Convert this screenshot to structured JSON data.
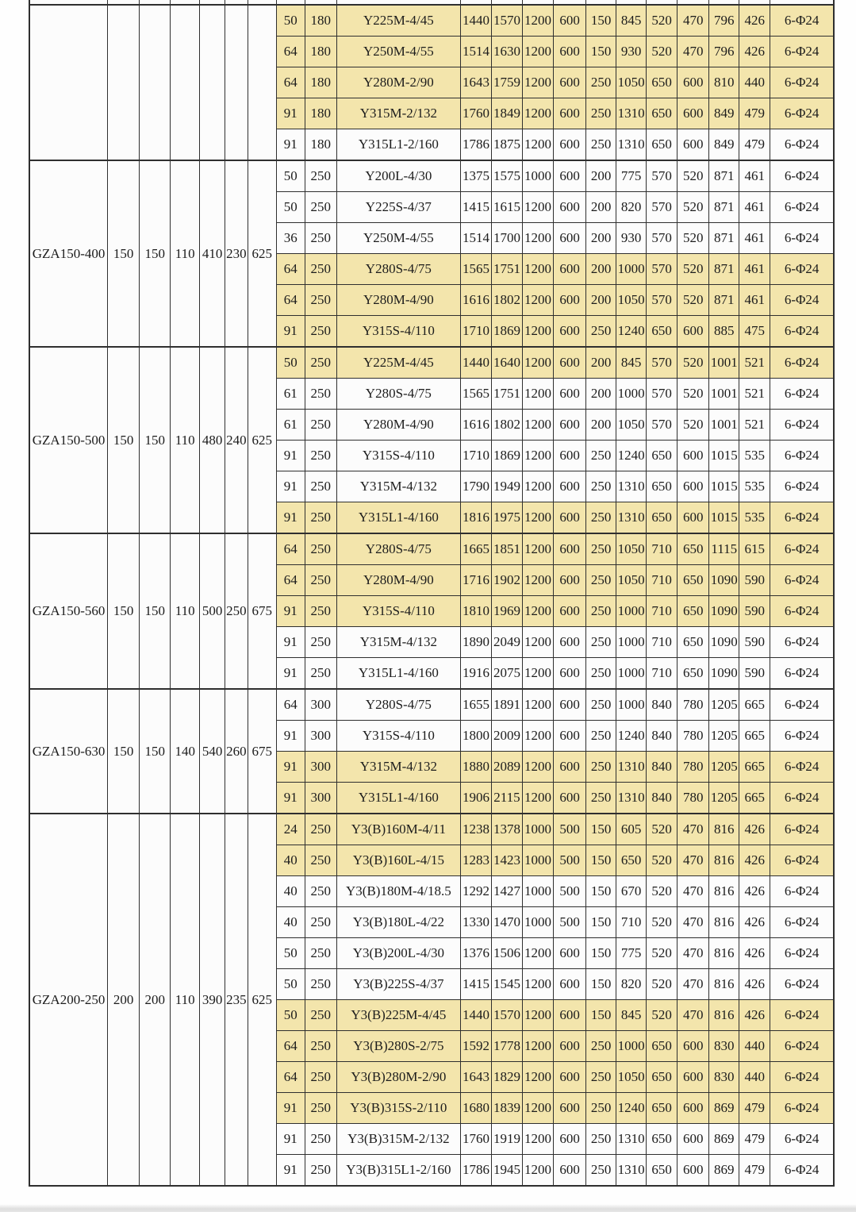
{
  "table": {
    "colors": {
      "row_yellow": "#f3e5ac",
      "row_white": "#fcfcfc",
      "border": "#2f2f2f",
      "text": "#1c1c1c"
    },
    "bolt_spec": "6-Φ24",
    "groups": [
      {
        "model": "",
        "dims": [
          "",
          "",
          "",
          "",
          "",
          ""
        ],
        "rows": [
          {
            "a": "50",
            "b": "180",
            "motor": "Y225M-4/45",
            "v": [
              "1440",
              "1570",
              "1200",
              "600",
              "150",
              "845",
              "520",
              "470",
              "796",
              "426"
            ],
            "bolt": "6-Φ24",
            "shade": "y"
          },
          {
            "a": "64",
            "b": "180",
            "motor": "Y250M-4/55",
            "v": [
              "1514",
              "1630",
              "1200",
              "600",
              "150",
              "930",
              "520",
              "470",
              "796",
              "426"
            ],
            "bolt": "6-Φ24",
            "shade": "y"
          },
          {
            "a": "64",
            "b": "180",
            "motor": "Y280M-2/90",
            "v": [
              "1643",
              "1759",
              "1200",
              "600",
              "250",
              "1050",
              "650",
              "600",
              "810",
              "440"
            ],
            "bolt": "6-Φ24",
            "shade": "y"
          },
          {
            "a": "91",
            "b": "180",
            "motor": "Y315M-2/132",
            "v": [
              "1760",
              "1849",
              "1200",
              "600",
              "250",
              "1310",
              "650",
              "600",
              "849",
              "479"
            ],
            "bolt": "6-Φ24",
            "shade": "y"
          },
          {
            "a": "91",
            "b": "180",
            "motor": "Y315L1-2/160",
            "v": [
              "1786",
              "1875",
              "1200",
              "600",
              "250",
              "1310",
              "650",
              "600",
              "849",
              "479"
            ],
            "bolt": "6-Φ24",
            "shade": "w"
          }
        ]
      },
      {
        "model": "GZA150-400",
        "dims": [
          "150",
          "150",
          "110",
          "410",
          "230",
          "625"
        ],
        "rows": [
          {
            "a": "50",
            "b": "250",
            "motor": "Y200L-4/30",
            "v": [
              "1375",
              "1575",
              "1000",
              "600",
              "200",
              "775",
              "570",
              "520",
              "871",
              "461"
            ],
            "bolt": "6-Φ24",
            "shade": "w"
          },
          {
            "a": "50",
            "b": "250",
            "motor": "Y225S-4/37",
            "v": [
              "1415",
              "1615",
              "1200",
              "600",
              "200",
              "820",
              "570",
              "520",
              "871",
              "461"
            ],
            "bolt": "6-Φ24",
            "shade": "w"
          },
          {
            "a": "36",
            "b": "250",
            "motor": "Y250M-4/55",
            "v": [
              "1514",
              "1700",
              "1200",
              "600",
              "200",
              "930",
              "570",
              "520",
              "871",
              "461"
            ],
            "bolt": "6-Φ24",
            "shade": "w"
          },
          {
            "a": "64",
            "b": "250",
            "motor": "Y280S-4/75",
            "v": [
              "1565",
              "1751",
              "1200",
              "600",
              "200",
              "1000",
              "570",
              "520",
              "871",
              "461"
            ],
            "bolt": "6-Φ24",
            "shade": "y"
          },
          {
            "a": "64",
            "b": "250",
            "motor": "Y280M-4/90",
            "v": [
              "1616",
              "1802",
              "1200",
              "600",
              "200",
              "1050",
              "570",
              "520",
              "871",
              "461"
            ],
            "bolt": "6-Φ24",
            "shade": "y"
          },
          {
            "a": "91",
            "b": "250",
            "motor": "Y315S-4/110",
            "v": [
              "1710",
              "1869",
              "1200",
              "600",
              "250",
              "1240",
              "650",
              "600",
              "885",
              "475"
            ],
            "bolt": "6-Φ24",
            "shade": "y"
          }
        ]
      },
      {
        "model": "GZA150-500",
        "dims": [
          "150",
          "150",
          "110",
          "480",
          "240",
          "625"
        ],
        "rows": [
          {
            "a": "50",
            "b": "250",
            "motor": "Y225M-4/45",
            "v": [
              "1440",
              "1640",
              "1200",
              "600",
              "200",
              "845",
              "570",
              "520",
              "1001",
              "521"
            ],
            "bolt": "6-Φ24",
            "shade": "y"
          },
          {
            "a": "61",
            "b": "250",
            "motor": "Y280S-4/75",
            "v": [
              "1565",
              "1751",
              "1200",
              "600",
              "200",
              "1000",
              "570",
              "520",
              "1001",
              "521"
            ],
            "bolt": "6-Φ24",
            "shade": "w"
          },
          {
            "a": "61",
            "b": "250",
            "motor": "Y280M-4/90",
            "v": [
              "1616",
              "1802",
              "1200",
              "600",
              "200",
              "1050",
              "570",
              "520",
              "1001",
              "521"
            ],
            "bolt": "6-Φ24",
            "shade": "w"
          },
          {
            "a": "91",
            "b": "250",
            "motor": "Y315S-4/110",
            "v": [
              "1710",
              "1869",
              "1200",
              "600",
              "250",
              "1240",
              "650",
              "600",
              "1015",
              "535"
            ],
            "bolt": "6-Φ24",
            "shade": "w"
          },
          {
            "a": "91",
            "b": "250",
            "motor": "Y315M-4/132",
            "v": [
              "1790",
              "1949",
              "1200",
              "600",
              "250",
              "1310",
              "650",
              "600",
              "1015",
              "535"
            ],
            "bolt": "6-Φ24",
            "shade": "w"
          },
          {
            "a": "91",
            "b": "250",
            "motor": "Y315L1-4/160",
            "v": [
              "1816",
              "1975",
              "1200",
              "600",
              "250",
              "1310",
              "650",
              "600",
              "1015",
              "535"
            ],
            "bolt": "6-Φ24",
            "shade": "y"
          }
        ]
      },
      {
        "model": "GZA150-560",
        "dims": [
          "150",
          "150",
          "110",
          "500",
          "250",
          "675"
        ],
        "rows": [
          {
            "a": "64",
            "b": "250",
            "motor": "Y280S-4/75",
            "v": [
              "1665",
              "1851",
              "1200",
              "600",
              "250",
              "1050",
              "710",
              "650",
              "1115",
              "615"
            ],
            "bolt": "6-Φ24",
            "shade": "y"
          },
          {
            "a": "64",
            "b": "250",
            "motor": "Y280M-4/90",
            "v": [
              "1716",
              "1902",
              "1200",
              "600",
              "250",
              "1050",
              "710",
              "650",
              "1090",
              "590"
            ],
            "bolt": "6-Φ24",
            "shade": "y"
          },
          {
            "a": "91",
            "b": "250",
            "motor": "Y315S-4/110",
            "v": [
              "1810",
              "1969",
              "1200",
              "600",
              "250",
              "1000",
              "710",
              "650",
              "1090",
              "590"
            ],
            "bolt": "6-Φ24",
            "shade": "y"
          },
          {
            "a": "91",
            "b": "250",
            "motor": "Y315M-4/132",
            "v": [
              "1890",
              "2049",
              "1200",
              "600",
              "250",
              "1000",
              "710",
              "650",
              "1090",
              "590"
            ],
            "bolt": "6-Φ24",
            "shade": "w"
          },
          {
            "a": "91",
            "b": "250",
            "motor": "Y315L1-4/160",
            "v": [
              "1916",
              "2075",
              "1200",
              "600",
              "250",
              "1000",
              "710",
              "650",
              "1090",
              "590"
            ],
            "bolt": "6-Φ24",
            "shade": "w"
          }
        ]
      },
      {
        "model": "GZA150-630",
        "dims": [
          "150",
          "150",
          "140",
          "540",
          "260",
          "675"
        ],
        "rows": [
          {
            "a": "64",
            "b": "300",
            "motor": "Y280S-4/75",
            "v": [
              "1655",
              "1891",
              "1200",
              "600",
              "250",
              "1000",
              "840",
              "780",
              "1205",
              "665"
            ],
            "bolt": "6-Φ24",
            "shade": "w"
          },
          {
            "a": "91",
            "b": "300",
            "motor": "Y315S-4/110",
            "v": [
              "1800",
              "2009",
              "1200",
              "600",
              "250",
              "1240",
              "840",
              "780",
              "1205",
              "665"
            ],
            "bolt": "6-Φ24",
            "shade": "w"
          },
          {
            "a": "91",
            "b": "300",
            "motor": "Y315M-4/132",
            "v": [
              "1880",
              "2089",
              "1200",
              "600",
              "250",
              "1310",
              "840",
              "780",
              "1205",
              "665"
            ],
            "bolt": "6-Φ24",
            "shade": "y"
          },
          {
            "a": "91",
            "b": "300",
            "motor": "Y315L1-4/160",
            "v": [
              "1906",
              "2115",
              "1200",
              "600",
              "250",
              "1310",
              "840",
              "780",
              "1205",
              "665"
            ],
            "bolt": "6-Φ24",
            "shade": "y"
          }
        ]
      },
      {
        "model": "GZA200-250",
        "dims": [
          "200",
          "200",
          "110",
          "390",
          "235",
          "625"
        ],
        "rows": [
          {
            "a": "24",
            "b": "250",
            "motor": "Y3(B)160M-4/11",
            "v": [
              "1238",
              "1378",
              "1000",
              "500",
              "150",
              "605",
              "520",
              "470",
              "816",
              "426"
            ],
            "bolt": "6-Φ24",
            "shade": "y",
            "low": true
          },
          {
            "a": "40",
            "b": "250",
            "motor": "Y3(B)160L-4/15",
            "v": [
              "1283",
              "1423",
              "1000",
              "500",
              "150",
              "650",
              "520",
              "470",
              "816",
              "426"
            ],
            "bolt": "6-Φ24",
            "shade": "y",
            "low": true
          },
          {
            "a": "40",
            "b": "250",
            "motor": "Y3(B)180M-4/18.5",
            "v": [
              "1292",
              "1427",
              "1000",
              "500",
              "150",
              "670",
              "520",
              "470",
              "816",
              "426"
            ],
            "bolt": "6-Φ24",
            "shade": "w",
            "low": true
          },
          {
            "a": "40",
            "b": "250",
            "motor": "Y3(B)180L-4/22",
            "v": [
              "1330",
              "1470",
              "1000",
              "500",
              "150",
              "710",
              "520",
              "470",
              "816",
              "426"
            ],
            "bolt": "6-Φ24",
            "shade": "w",
            "low": true
          },
          {
            "a": "50",
            "b": "250",
            "motor": "Y3(B)200L-4/30",
            "v": [
              "1376",
              "1506",
              "1200",
              "600",
              "150",
              "775",
              "520",
              "470",
              "816",
              "426"
            ],
            "bolt": "6-Φ24",
            "shade": "w",
            "low": true
          },
          {
            "a": "50",
            "b": "250",
            "motor": "Y3(B)225S-4/37",
            "v": [
              "1415",
              "1545",
              "1200",
              "600",
              "150",
              "820",
              "520",
              "470",
              "816",
              "426"
            ],
            "bolt": "6-Φ24",
            "shade": "w",
            "low": true
          },
          {
            "a": "50",
            "b": "250",
            "motor": "Y3(B)225M-4/45",
            "v": [
              "1440",
              "1570",
              "1200",
              "600",
              "150",
              "845",
              "520",
              "470",
              "816",
              "426"
            ],
            "bolt": "6-Φ24",
            "shade": "y",
            "low": true
          },
          {
            "a": "64",
            "b": "250",
            "motor": "Y3(B)280S-2/75",
            "v": [
              "1592",
              "1778",
              "1200",
              "600",
              "250",
              "1000",
              "650",
              "600",
              "830",
              "440"
            ],
            "bolt": "6-Φ24",
            "shade": "y"
          },
          {
            "a": "64",
            "b": "250",
            "motor": "Y3(B)280M-2/90",
            "v": [
              "1643",
              "1829",
              "1200",
              "600",
              "250",
              "1050",
              "650",
              "600",
              "830",
              "440"
            ],
            "bolt": "6-Φ24",
            "shade": "y"
          },
          {
            "a": "91",
            "b": "250",
            "motor": "Y3(B)315S-2/110",
            "v": [
              "1680",
              "1839",
              "1200",
              "600",
              "250",
              "1240",
              "650",
              "600",
              "869",
              "479"
            ],
            "bolt": "6-Φ24",
            "shade": "y"
          },
          {
            "a": "91",
            "b": "250",
            "motor": "Y3(B)315M-2/132",
            "v": [
              "1760",
              "1919",
              "1200",
              "600",
              "250",
              "1310",
              "650",
              "600",
              "869",
              "479"
            ],
            "bolt": "6-Φ24",
            "shade": "w"
          },
          {
            "a": "91",
            "b": "250",
            "motor": "Y3(B)315L1-2/160",
            "v": [
              "1786",
              "1945",
              "1200",
              "600",
              "250",
              "1310",
              "650",
              "600",
              "869",
              "479"
            ],
            "bolt": "6-Φ24",
            "shade": "w"
          }
        ]
      }
    ]
  }
}
